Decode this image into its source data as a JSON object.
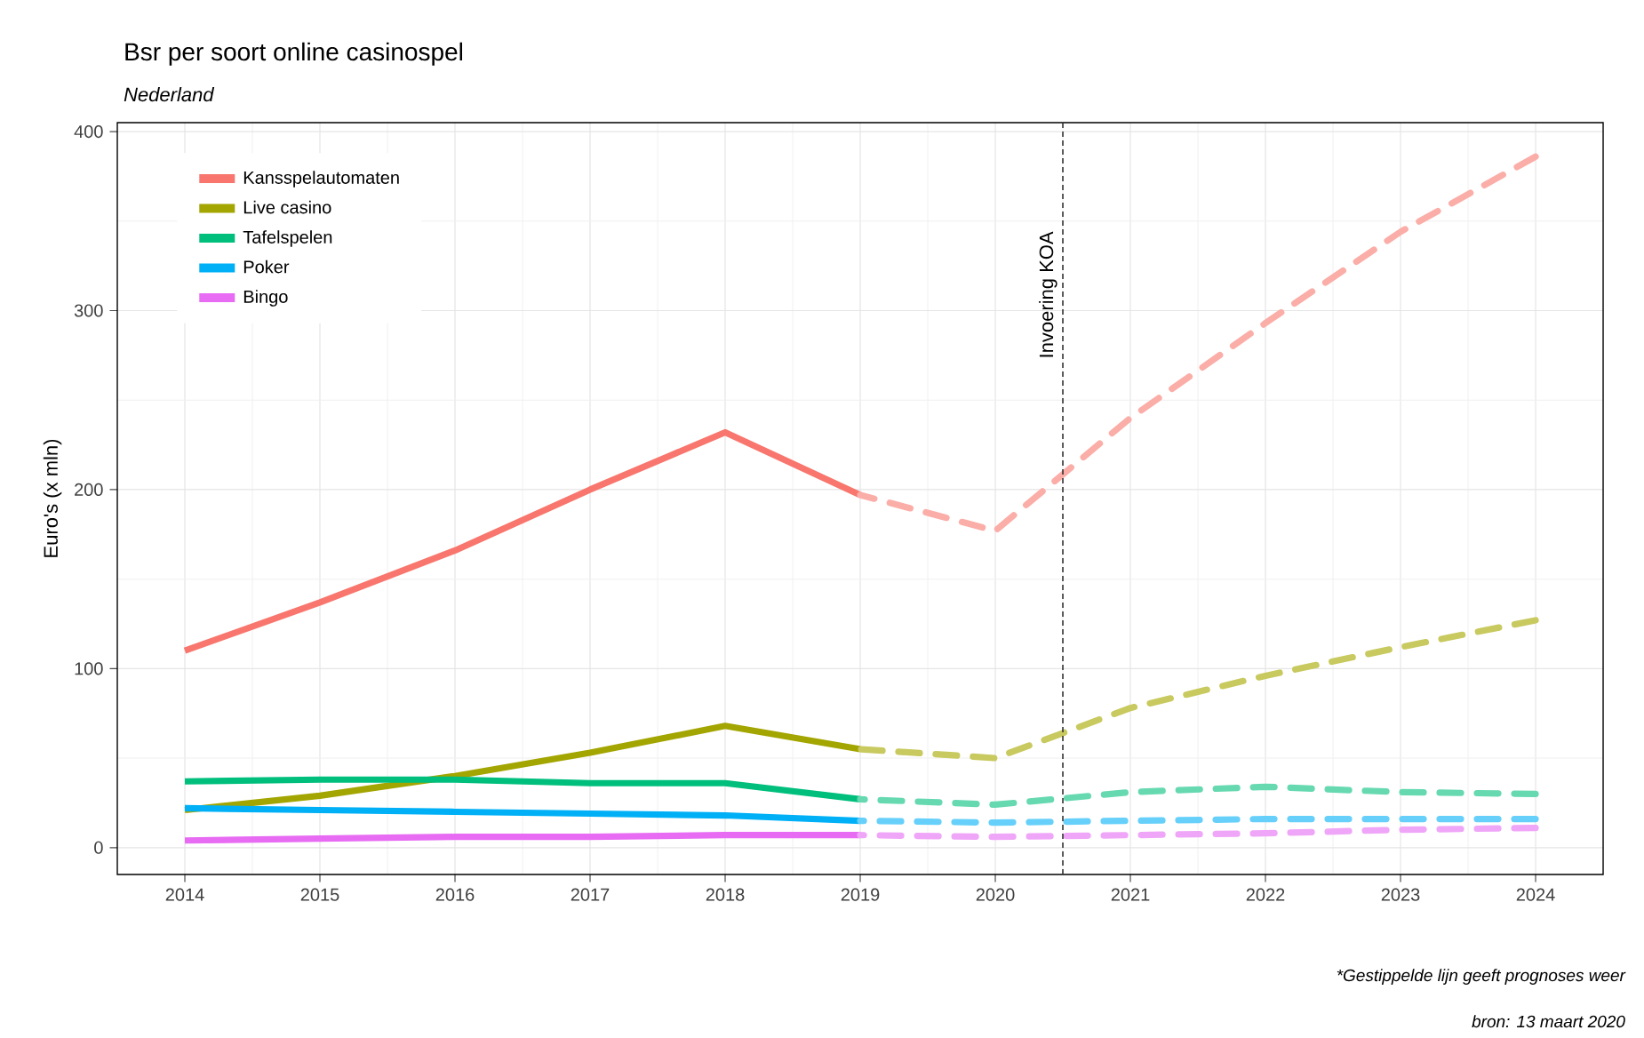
{
  "chart_data": {
    "type": "line",
    "title": "Bsr per soort online casinospel",
    "subtitle": "Nederland",
    "ylabel": "Euro's (x mln)",
    "xlim": [
      2013.5,
      2024.5
    ],
    "xticks": [
      2014,
      2015,
      2016,
      2017,
      2018,
      2019,
      2020,
      2021,
      2022,
      2023,
      2024
    ],
    "ylim": [
      -15,
      405
    ],
    "yticks": [
      0,
      100,
      200,
      300,
      400
    ],
    "grid": true,
    "legend": "top left",
    "series": [
      {
        "name": "Kansspelautomaten",
        "color": "#f8766d",
        "line_style": "solid",
        "x": [
          2014,
          2015,
          2016,
          2017,
          2018,
          2019
        ],
        "values": [
          110,
          137,
          166,
          200,
          232,
          197
        ]
      },
      {
        "name": "Live casino",
        "color": "#a3a500",
        "line_style": "solid",
        "x": [
          2014,
          2015,
          2016,
          2017,
          2018,
          2019
        ],
        "values": [
          21,
          29,
          40,
          53,
          68,
          55
        ]
      },
      {
        "name": "Tafelspelen",
        "color": "#00bf7d",
        "line_style": "solid",
        "x": [
          2014,
          2015,
          2016,
          2017,
          2018,
          2019
        ],
        "values": [
          37,
          38,
          38,
          36,
          36,
          27
        ]
      },
      {
        "name": "Poker",
        "color": "#00b0f6",
        "line_style": "solid",
        "x": [
          2014,
          2015,
          2016,
          2017,
          2018,
          2019
        ],
        "values": [
          22,
          21,
          20,
          19,
          18,
          15
        ]
      },
      {
        "name": "Bingo",
        "color": "#e76bf3",
        "line_style": "solid",
        "x": [
          2014,
          2015,
          2016,
          2017,
          2018,
          2019
        ],
        "values": [
          4,
          5,
          6,
          6,
          7,
          7
        ]
      },
      {
        "color": "#fbada7",
        "line_style": "dashed",
        "x": [
          2019,
          2020,
          2021,
          2022,
          2023,
          2024
        ],
        "values": [
          197,
          177,
          240,
          293,
          344,
          386
        ]
      },
      {
        "color": "#c8c95e",
        "line_style": "dashed",
        "x": [
          2019,
          2020,
          2021,
          2022,
          2023,
          2024
        ],
        "values": [
          55,
          50,
          78,
          96,
          112,
          127
        ]
      },
      {
        "color": "#66d9b1",
        "line_style": "dashed",
        "x": [
          2019,
          2020,
          2021,
          2022,
          2023,
          2024
        ],
        "values": [
          27,
          24,
          31,
          34,
          31,
          30
        ]
      },
      {
        "color": "#66d0fa",
        "line_style": "dashed",
        "x": [
          2019,
          2020,
          2021,
          2022,
          2023,
          2024
        ],
        "values": [
          15,
          14,
          15,
          16,
          16,
          16
        ]
      },
      {
        "color": "#f0a6f8",
        "line_style": "dashed",
        "x": [
          2019,
          2020,
          2021,
          2022,
          2023,
          2024
        ],
        "values": [
          7,
          6,
          7,
          8,
          10,
          11
        ]
      }
    ],
    "ref_lines": [
      {
        "axis": "x",
        "value": 2020.5,
        "label": "Invoering KOA",
        "color": "#333333",
        "line_style": "dashed"
      }
    ],
    "annotations": [
      "*Gestippelde lijn geeft prognoses weer",
      "bron: 13 maart 2020"
    ]
  }
}
